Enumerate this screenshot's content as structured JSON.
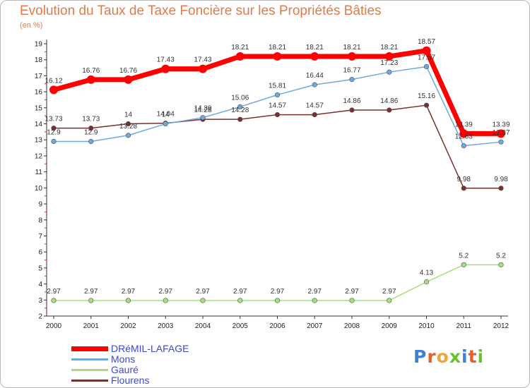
{
  "page": {
    "title": "Evolution du Taux de Taxe Foncière sur les Propriétés Bâties",
    "unit": "(en %)",
    "logo_text": "Proxiti",
    "logo_letters": [
      "P",
      "r",
      "o",
      "x",
      "i",
      "t",
      "i"
    ],
    "logo_colors": [
      "#3f7fd6",
      "#e95d2a",
      "#f0a53a",
      "#6ec12e",
      "#3f7fd6",
      "#e95d2a",
      "#6ec12e"
    ]
  },
  "chart_data": {
    "type": "line",
    "title": "Evolution du Taux de Taxe Foncière sur les Propriétés Bâties",
    "ylabel": "(en %)",
    "xlabel": "",
    "x": [
      "2000",
      "2001",
      "2002",
      "2003",
      "2004",
      "2005",
      "2006",
      "2007",
      "2008",
      "2009",
      "2010",
      "2011",
      "2012"
    ],
    "ylim": [
      2,
      19
    ],
    "yticks": [
      2,
      3,
      4,
      5,
      6,
      7,
      8,
      9,
      10,
      11,
      12,
      13,
      14,
      15,
      16,
      17,
      18,
      19
    ],
    "grid": false,
    "legend_position": "bottom-left",
    "series": [
      {
        "name": "DRéMIL-LAFAGE",
        "color": "#ff0000",
        "values": [
          16.12,
          16.76,
          16.76,
          17.43,
          17.43,
          18.21,
          18.21,
          18.21,
          18.21,
          18.21,
          18.57,
          13.39,
          13.39
        ],
        "labels": [
          "16.12",
          "16.76",
          "16.76",
          "17.43",
          "17.43",
          "18.21",
          "18.21",
          "18.21",
          "18.21",
          "18.21",
          "18.57",
          "13.39",
          "13.39"
        ]
      },
      {
        "name": "Mons",
        "color": "#6fa8dc",
        "values": [
          12.9,
          12.9,
          13.28,
          14.0,
          14.39,
          15.06,
          15.81,
          16.44,
          16.77,
          17.23,
          17.57,
          12.63,
          12.87
        ],
        "labels": [
          "12.9",
          "12.9",
          "13.28",
          "14",
          "14.39",
          "15.06",
          "15.81",
          "16.44",
          "16.77",
          "17.23",
          "17.57",
          "12.63",
          "12.87"
        ]
      },
      {
        "name": "Gauré",
        "color": "#a6e07a",
        "values": [
          2.97,
          2.97,
          2.97,
          2.97,
          2.97,
          2.97,
          2.97,
          2.97,
          2.97,
          2.97,
          4.13,
          5.2,
          5.2
        ],
        "labels": [
          "2.97",
          "2.97",
          "2.97",
          "2.97",
          "2.97",
          "2.97",
          "2.97",
          "2.97",
          "2.97",
          "2.97",
          "4.13",
          "5.2",
          "5.2"
        ]
      },
      {
        "name": "Flourens",
        "color": "#7a2f2f",
        "values": [
          13.73,
          13.73,
          14.0,
          14.04,
          14.28,
          14.28,
          14.57,
          14.57,
          14.86,
          14.86,
          15.16,
          9.98,
          9.98
        ],
        "labels": [
          "13.73",
          "13.73",
          "14",
          "14.04",
          "14.28",
          "14.28",
          "14.57",
          "14.57",
          "14.86",
          "14.86",
          "15.16",
          "9.98",
          "9.98"
        ]
      }
    ]
  }
}
